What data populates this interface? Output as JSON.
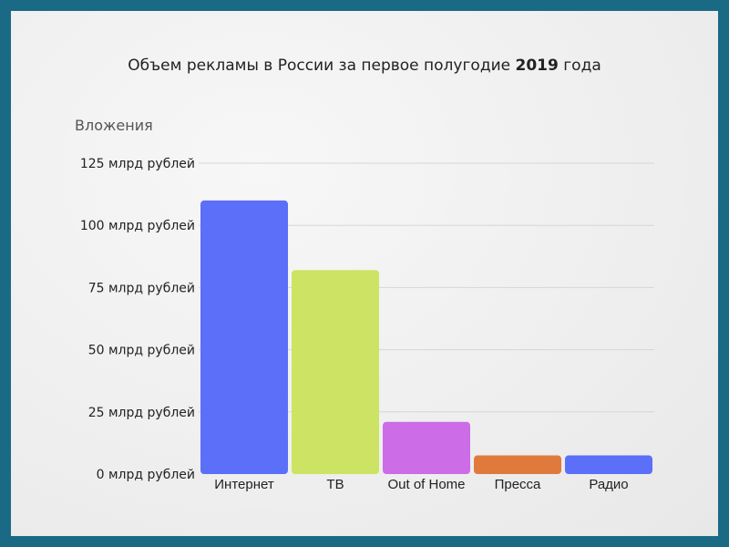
{
  "chart_data": {
    "type": "bar",
    "title_prefix": "Объем рекламы в России за первое полугодие",
    "title_year": "2019",
    "title_suffix": "года",
    "ylabel": "Вложения",
    "xlabel": "",
    "ylim": [
      0,
      125
    ],
    "yticks": [
      {
        "value": 0,
        "label": "0 млрд рублей"
      },
      {
        "value": 25,
        "label": "25 млрд рублей"
      },
      {
        "value": 50,
        "label": "50 млрд рублей"
      },
      {
        "value": 75,
        "label": "75 млрд рублей"
      },
      {
        "value": 100,
        "label": "100 млрд рублей"
      },
      {
        "value": 125,
        "label": "125 млрд рублей"
      }
    ],
    "categories": [
      "Интернет",
      "ТВ",
      "Out of Home",
      "Пресса",
      "Радио"
    ],
    "values": [
      110,
      82,
      21,
      7.5,
      7.5
    ],
    "colors": [
      "#5b6ff8",
      "#cde363",
      "#cc6ce6",
      "#e07a3c",
      "#5b6ff8"
    ],
    "grid": true,
    "legend": "none"
  }
}
